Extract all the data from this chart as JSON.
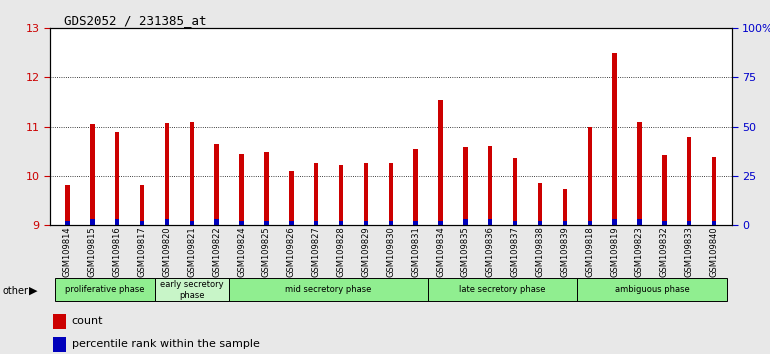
{
  "title": "GDS2052 / 231385_at",
  "samples": [
    "GSM109814",
    "GSM109815",
    "GSM109816",
    "GSM109817",
    "GSM109820",
    "GSM109821",
    "GSM109822",
    "GSM109824",
    "GSM109825",
    "GSM109826",
    "GSM109827",
    "GSM109828",
    "GSM109829",
    "GSM109830",
    "GSM109831",
    "GSM109834",
    "GSM109835",
    "GSM109836",
    "GSM109837",
    "GSM109838",
    "GSM109839",
    "GSM109818",
    "GSM109819",
    "GSM109823",
    "GSM109832",
    "GSM109833",
    "GSM109840"
  ],
  "count_values": [
    9.8,
    11.05,
    10.88,
    9.82,
    11.08,
    11.1,
    10.65,
    10.45,
    10.48,
    10.1,
    10.25,
    10.22,
    10.25,
    10.25,
    10.55,
    11.55,
    10.58,
    10.6,
    10.35,
    9.85,
    9.72,
    11.0,
    12.5,
    11.1,
    10.42,
    10.78,
    10.38
  ],
  "percentile_values": [
    2,
    3,
    3,
    2,
    3,
    2,
    3,
    2,
    2,
    2,
    2,
    2,
    2,
    2,
    2,
    2,
    3,
    3,
    2,
    2,
    2,
    2,
    3,
    3,
    2,
    2,
    2
  ],
  "phases": [
    {
      "label": "proliferative phase",
      "start": 0,
      "end": 4,
      "color": "#90EE90"
    },
    {
      "label": "early secretory\nphase",
      "start": 4,
      "end": 7,
      "color": "#c8f5c8"
    },
    {
      "label": "mid secretory phase",
      "start": 7,
      "end": 15,
      "color": "#90EE90"
    },
    {
      "label": "late secretory phase",
      "start": 15,
      "end": 21,
      "color": "#90EE90"
    },
    {
      "label": "ambiguous phase",
      "start": 21,
      "end": 27,
      "color": "#90EE90"
    }
  ],
  "ylim_left": [
    9.0,
    13.0
  ],
  "ylim_right": [
    0,
    100
  ],
  "yticks_left": [
    9,
    10,
    11,
    12,
    13
  ],
  "yticks_right": [
    0,
    25,
    50,
    75,
    100
  ],
  "ytick_labels_right": [
    "0",
    "25",
    "50",
    "75",
    "100%"
  ],
  "bar_color_count": "#cc0000",
  "bar_color_percentile": "#0000bb",
  "bar_width": 0.18,
  "background_color": "#e8e8e8",
  "plot_bg_color": "#ffffff",
  "xtick_bg_color": "#d0d0d0",
  "base_value": 9.0,
  "percentile_scale_max": 100,
  "left_tick_color": "#cc0000",
  "right_tick_color": "#0000cc"
}
